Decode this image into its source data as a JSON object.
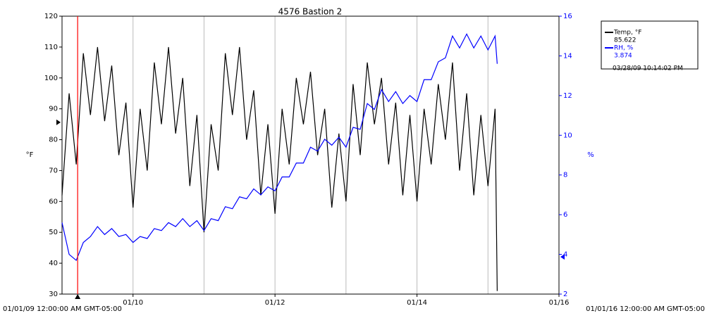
{
  "chart_data": {
    "type": "line",
    "title": "4576 Bastion 2",
    "y_label": "°F",
    "y2_label": "%",
    "x_start_label": "01/01/09 12:00:00 AM GMT-05:00",
    "x_end_label": "01/01/16 12:00:00 AM GMT-05:00",
    "xlim": [
      0,
      7
    ],
    "xticks": [
      {
        "value": 1,
        "label": "01/10"
      },
      {
        "value": 3,
        "label": "01/12"
      },
      {
        "value": 5,
        "label": "01/14"
      },
      {
        "value": 7,
        "label": "01/16"
      }
    ],
    "xgrid": [
      1,
      2,
      3,
      4,
      5,
      6
    ],
    "ylim": [
      30,
      120
    ],
    "yticks": [
      30,
      40,
      50,
      60,
      70,
      80,
      90,
      100,
      110,
      120
    ],
    "y2lim": [
      2,
      16
    ],
    "y2ticks": [
      2,
      4,
      6,
      8,
      10,
      12,
      14,
      16
    ],
    "y2color": "#0000ff",
    "grid": true,
    "x": [
      0,
      0.1,
      0.2,
      0.3,
      0.4,
      0.5,
      0.6,
      0.7,
      0.8,
      0.9,
      1,
      1.1,
      1.2,
      1.3,
      1.4,
      1.5,
      1.6,
      1.7,
      1.8,
      1.9,
      2,
      2.1,
      2.2,
      2.3,
      2.4,
      2.5,
      2.6,
      2.7,
      2.8,
      2.9,
      3,
      3.1,
      3.2,
      3.3,
      3.4,
      3.5,
      3.6,
      3.7,
      3.8,
      3.9,
      4,
      4.1,
      4.2,
      4.3,
      4.4,
      4.5,
      4.6,
      4.7,
      4.8,
      4.9,
      5,
      5.1,
      5.2,
      5.3,
      5.4,
      5.5,
      5.6,
      5.7,
      5.8,
      5.9,
      6,
      6.1,
      6.13
    ],
    "series": [
      {
        "name": "Temp, °F",
        "color": "#000000",
        "values": [
          62,
          95,
          72,
          108,
          88,
          110,
          86,
          104,
          75,
          92,
          58,
          90,
          70,
          105,
          85,
          110,
          82,
          100,
          65,
          88,
          50,
          85,
          70,
          108,
          88,
          110,
          80,
          96,
          62,
          85,
          56,
          90,
          72,
          100,
          85,
          102,
          75,
          90,
          58,
          82,
          60,
          98,
          75,
          105,
          85,
          100,
          72,
          92,
          62,
          88,
          60,
          90,
          72,
          98,
          80,
          105,
          70,
          95,
          62,
          88,
          65,
          90,
          31
        ]
      },
      {
        "name": "RH, %",
        "color": "#0000ff",
        "axis": "y2",
        "values": [
          5.6,
          4.0,
          3.7,
          4.6,
          4.9,
          5.4,
          5.0,
          5.3,
          4.9,
          5.0,
          4.6,
          4.9,
          4.8,
          5.3,
          5.2,
          5.6,
          5.4,
          5.8,
          5.4,
          5.7,
          5.2,
          5.8,
          5.7,
          6.4,
          6.3,
          6.9,
          6.8,
          7.3,
          7.0,
          7.4,
          7.2,
          7.9,
          7.9,
          8.6,
          8.6,
          9.4,
          9.2,
          9.8,
          9.5,
          9.9,
          9.4,
          10.4,
          10.3,
          11.6,
          11.3,
          12.3,
          11.7,
          12.2,
          11.6,
          12.0,
          11.7,
          12.8,
          12.8,
          13.7,
          13.9,
          15.0,
          14.4,
          15.1,
          14.4,
          15.0,
          14.3,
          15.0,
          13.6
        ]
      }
    ],
    "cursor": {
      "x": 0.22,
      "color": "#ff0000",
      "values": [
        85.622,
        3.874
      ],
      "time": "03/28/09 10:14:02 PM"
    }
  }
}
